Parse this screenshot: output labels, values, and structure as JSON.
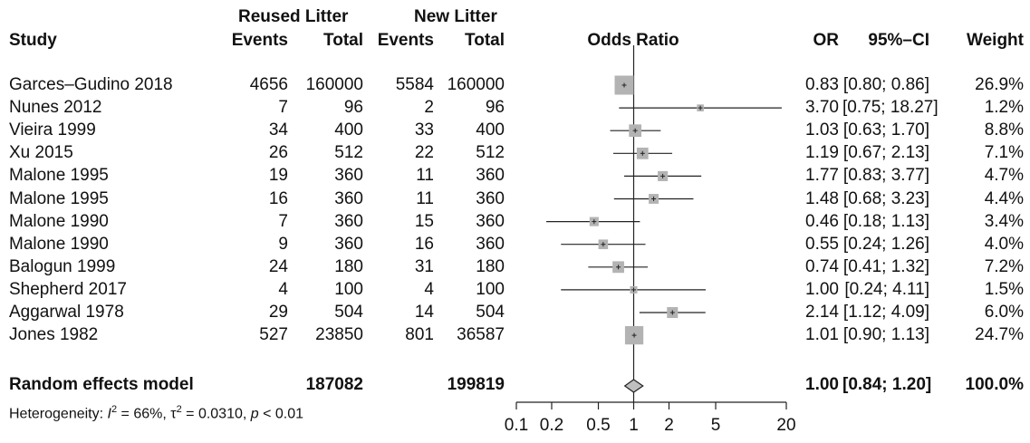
{
  "header": {
    "group1": "Reused Litter",
    "group2": "New Litter",
    "study": "Study",
    "events1": "Events",
    "total1": "Total",
    "events2": "Events",
    "total2": "Total",
    "plot_title": "Odds Ratio",
    "or": "OR",
    "ci": "95%–CI",
    "weight": "Weight"
  },
  "studies": [
    {
      "name": "Garces–Gudino 2018",
      "e1": "4656",
      "t1": "160000",
      "e2": "5584",
      "t2": "160000",
      "or_text": "0.83",
      "ci_text": "[0.80; 0.86]",
      "w_text": "26.9%"
    },
    {
      "name": "Nunes 2012",
      "e1": "7",
      "t1": "96",
      "e2": "2",
      "t2": "96",
      "or_text": "3.70",
      "ci_text": "[0.75; 18.27]",
      "w_text": "1.2%"
    },
    {
      "name": "Vieira 1999",
      "e1": "34",
      "t1": "400",
      "e2": "33",
      "t2": "400",
      "or_text": "1.03",
      "ci_text": "[0.63; 1.70]",
      "w_text": "8.8%"
    },
    {
      "name": "Xu 2015",
      "e1": "26",
      "t1": "512",
      "e2": "22",
      "t2": "512",
      "or_text": "1.19",
      "ci_text": "[0.67; 2.13]",
      "w_text": "7.1%"
    },
    {
      "name": "Malone 1995",
      "e1": "19",
      "t1": "360",
      "e2": "11",
      "t2": "360",
      "or_text": "1.77",
      "ci_text": "[0.83; 3.77]",
      "w_text": "4.7%"
    },
    {
      "name": "Malone 1995",
      "e1": "16",
      "t1": "360",
      "e2": "11",
      "t2": "360",
      "or_text": "1.48",
      "ci_text": "[0.68; 3.23]",
      "w_text": "4.4%"
    },
    {
      "name": "Malone 1990",
      "e1": "7",
      "t1": "360",
      "e2": "15",
      "t2": "360",
      "or_text": "0.46",
      "ci_text": "[0.18; 1.13]",
      "w_text": "3.4%"
    },
    {
      "name": "Malone 1990",
      "e1": "9",
      "t1": "360",
      "e2": "16",
      "t2": "360",
      "or_text": "0.55",
      "ci_text": "[0.24; 1.26]",
      "w_text": "4.0%"
    },
    {
      "name": "Balogun 1999",
      "e1": "24",
      "t1": "180",
      "e2": "31",
      "t2": "180",
      "or_text": "0.74",
      "ci_text": "[0.41; 1.32]",
      "w_text": "7.2%"
    },
    {
      "name": "Shepherd 2017",
      "e1": "4",
      "t1": "100",
      "e2": "4",
      "t2": "100",
      "or_text": "1.00",
      "ci_text": "[0.24; 4.11]",
      "w_text": "1.5%"
    },
    {
      "name": "Aggarwal 1978",
      "e1": "29",
      "t1": "504",
      "e2": "14",
      "t2": "504",
      "or_text": "2.14",
      "ci_text": "[1.12; 4.09]",
      "w_text": "6.0%"
    },
    {
      "name": "Jones 1982",
      "e1": "527",
      "t1": "23850",
      "e2": "801",
      "t2": "36587",
      "or_text": "1.01",
      "ci_text": "[0.90; 1.13]",
      "w_text": "24.7%"
    }
  ],
  "summary": {
    "name": "Random effects model",
    "t1": "187082",
    "t2": "199819",
    "or_text": "1.00",
    "ci_text": "[0.84; 1.20]",
    "w_text": "100.0%"
  },
  "heterogeneity": {
    "prefix": "Heterogeneity: ",
    "i_symbol": "I",
    "i_sup": "2",
    "i_value": " = 66%, ",
    "tau_symbol": "τ",
    "tau_sup": "2",
    "tau_value": " = 0.0310, ",
    "p_symbol": "p",
    "p_value": " < 0.01"
  },
  "colors": {
    "box": "#b3b3b3",
    "diamond": "#bfbfbf",
    "line": "#222222"
  },
  "chart_data": {
    "type": "forest",
    "x_scale": "log",
    "xlim": [
      0.1,
      20
    ],
    "ticks": [
      0.1,
      0.2,
      0.5,
      1,
      2,
      5,
      20
    ],
    "tick_labels": [
      "0.1",
      "0.2",
      "0.5",
      "1",
      "2",
      "5",
      "20"
    ],
    "reference_line": 1,
    "xlabel": "Odds Ratio",
    "points": [
      {
        "or": 0.83,
        "lo": 0.8,
        "hi": 0.86,
        "weight": 26.9
      },
      {
        "or": 3.7,
        "lo": 0.75,
        "hi": 18.27,
        "weight": 1.2
      },
      {
        "or": 1.03,
        "lo": 0.63,
        "hi": 1.7,
        "weight": 8.8
      },
      {
        "or": 1.19,
        "lo": 0.67,
        "hi": 2.13,
        "weight": 7.1
      },
      {
        "or": 1.77,
        "lo": 0.83,
        "hi": 3.77,
        "weight": 4.7
      },
      {
        "or": 1.48,
        "lo": 0.68,
        "hi": 3.23,
        "weight": 4.4
      },
      {
        "or": 0.46,
        "lo": 0.18,
        "hi": 1.13,
        "weight": 3.4
      },
      {
        "or": 0.55,
        "lo": 0.24,
        "hi": 1.26,
        "weight": 4.0
      },
      {
        "or": 0.74,
        "lo": 0.41,
        "hi": 1.32,
        "weight": 7.2
      },
      {
        "or": 1.0,
        "lo": 0.24,
        "hi": 4.11,
        "weight": 1.5
      },
      {
        "or": 2.14,
        "lo": 1.12,
        "hi": 4.09,
        "weight": 6.0
      },
      {
        "or": 1.01,
        "lo": 0.9,
        "hi": 1.13,
        "weight": 24.7
      }
    ],
    "summary": {
      "or": 1.0,
      "lo": 0.84,
      "hi": 1.2,
      "weight": 100.0
    }
  }
}
